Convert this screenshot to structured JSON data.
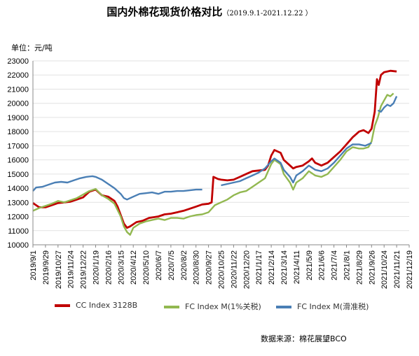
{
  "title": {
    "main": "国内外棉花现货价格对比",
    "date_range": "（2019.9.1-2021.12.22 ）"
  },
  "unit_label": "单位：元/吨",
  "source": "数据来源：棉花展望BCO",
  "chart_data": {
    "type": "line",
    "title": "国内外棉花现货价格对比",
    "ylabel": "单位：元/吨",
    "xlabel": "",
    "ylim": [
      10000,
      23000
    ],
    "y_ticks": [
      10000,
      11000,
      12000,
      13000,
      14000,
      15000,
      16000,
      17000,
      18000,
      19000,
      20000,
      21000,
      22000,
      23000
    ],
    "x_range": [
      "2019-09-01",
      "2021-12-19"
    ],
    "x_tick_labels": [
      "2019/9/1",
      "2019/9/29",
      "2019/10/27",
      "2019/11/24",
      "2019/12/22",
      "2020/1/19",
      "2020/2/16",
      "2020/3/15",
      "2020/4/12",
      "2020/5/10",
      "2020/6/7",
      "2020/7/5",
      "2020/8/2",
      "2020/8/30",
      "2020/9/27",
      "2020/10/25",
      "2020/11/22",
      "2020/12/20",
      "2021/1/17",
      "2021/2/14",
      "2021/3/14",
      "2021/4/11",
      "2021/5/9",
      "2021/6/6",
      "2021/7/4",
      "2021/8/1",
      "2021/8/29",
      "2021/9/26",
      "2021/10/24",
      "2021/11/21",
      "2021/12/19"
    ],
    "grid": "horizontal",
    "legend_position": "bottom",
    "series": [
      {
        "name": "CC Index 3128B",
        "color": "#c00000",
        "points": [
          [
            "2019-09-01",
            12950
          ],
          [
            "2019-09-08",
            12800
          ],
          [
            "2019-09-15",
            12650
          ],
          [
            "2019-09-29",
            12650
          ],
          [
            "2019-10-13",
            12800
          ],
          [
            "2019-10-27",
            12950
          ],
          [
            "2019-11-10",
            13000
          ],
          [
            "2019-11-24",
            13050
          ],
          [
            "2019-12-08",
            13200
          ],
          [
            "2019-12-22",
            13350
          ],
          [
            "2020-01-05",
            13750
          ],
          [
            "2020-01-19",
            13900
          ],
          [
            "2020-02-02",
            13500
          ],
          [
            "2020-02-16",
            13400
          ],
          [
            "2020-03-01",
            13100
          ],
          [
            "2020-03-08",
            12700
          ],
          [
            "2020-03-15",
            12100
          ],
          [
            "2020-03-22",
            11500
          ],
          [
            "2020-03-29",
            11200
          ],
          [
            "2020-04-05",
            11300
          ],
          [
            "2020-04-19",
            11600
          ],
          [
            "2020-05-03",
            11700
          ],
          [
            "2020-05-17",
            11900
          ],
          [
            "2020-06-07",
            12000
          ],
          [
            "2020-06-21",
            12150
          ],
          [
            "2020-07-05",
            12200
          ],
          [
            "2020-07-19",
            12300
          ],
          [
            "2020-08-02",
            12400
          ],
          [
            "2020-08-16",
            12550
          ],
          [
            "2020-08-30",
            12700
          ],
          [
            "2020-09-13",
            12850
          ],
          [
            "2020-09-27",
            12900
          ],
          [
            "2020-10-04",
            13000
          ],
          [
            "2020-10-08",
            14800
          ],
          [
            "2020-10-18",
            14650
          ],
          [
            "2020-10-25",
            14600
          ],
          [
            "2020-11-08",
            14550
          ],
          [
            "2020-11-22",
            14600
          ],
          [
            "2020-12-06",
            14800
          ],
          [
            "2020-12-20",
            15000
          ],
          [
            "2021-01-03",
            15200
          ],
          [
            "2021-01-17",
            15250
          ],
          [
            "2021-01-31",
            15300
          ],
          [
            "2021-02-07",
            15600
          ],
          [
            "2021-02-14",
            16300
          ],
          [
            "2021-02-21",
            16700
          ],
          [
            "2021-03-07",
            16500
          ],
          [
            "2021-03-14",
            16000
          ],
          [
            "2021-03-28",
            15600
          ],
          [
            "2021-04-04",
            15400
          ],
          [
            "2021-04-11",
            15500
          ],
          [
            "2021-04-25",
            15600
          ],
          [
            "2021-05-09",
            15900
          ],
          [
            "2021-05-16",
            16100
          ],
          [
            "2021-05-23",
            15800
          ],
          [
            "2021-06-06",
            15600
          ],
          [
            "2021-06-20",
            15800
          ],
          [
            "2021-07-04",
            16200
          ],
          [
            "2021-07-18",
            16600
          ],
          [
            "2021-08-01",
            17100
          ],
          [
            "2021-08-15",
            17600
          ],
          [
            "2021-08-29",
            18000
          ],
          [
            "2021-09-08",
            18100
          ],
          [
            "2021-09-19",
            17900
          ],
          [
            "2021-09-26",
            18200
          ],
          [
            "2021-10-03",
            19400
          ],
          [
            "2021-10-08",
            21700
          ],
          [
            "2021-10-12",
            21300
          ],
          [
            "2021-10-17",
            22000
          ],
          [
            "2021-10-24",
            22200
          ],
          [
            "2021-11-07",
            22300
          ],
          [
            "2021-11-21",
            22250
          ]
        ]
      },
      {
        "name": "FC Index M(1%关税)",
        "color": "#92b850",
        "points": [
          [
            "2019-09-01",
            12400
          ],
          [
            "2019-09-15",
            12600
          ],
          [
            "2019-09-29",
            12750
          ],
          [
            "2019-10-13",
            12900
          ],
          [
            "2019-10-27",
            13100
          ],
          [
            "2019-11-10",
            13000
          ],
          [
            "2019-11-24",
            13150
          ],
          [
            "2019-12-08",
            13300
          ],
          [
            "2019-12-22",
            13550
          ],
          [
            "2020-01-05",
            13800
          ],
          [
            "2020-01-19",
            13950
          ],
          [
            "2020-02-02",
            13500
          ],
          [
            "2020-02-16",
            13250
          ],
          [
            "2020-03-01",
            12900
          ],
          [
            "2020-03-15",
            12000
          ],
          [
            "2020-03-22",
            11300
          ],
          [
            "2020-03-29",
            10900
          ],
          [
            "2020-04-05",
            10700
          ],
          [
            "2020-04-12",
            11200
          ],
          [
            "2020-04-26",
            11500
          ],
          [
            "2020-05-10",
            11650
          ],
          [
            "2020-05-24",
            11750
          ],
          [
            "2020-06-07",
            11850
          ],
          [
            "2020-06-21",
            11750
          ],
          [
            "2020-07-05",
            11900
          ],
          [
            "2020-07-19",
            11900
          ],
          [
            "2020-08-02",
            11850
          ],
          [
            "2020-08-16",
            12000
          ],
          [
            "2020-08-30",
            12100
          ],
          [
            "2020-09-13",
            12150
          ],
          [
            "2020-09-27",
            12300
          ],
          [
            "2020-10-11",
            12800
          ],
          [
            "2020-10-25",
            13000
          ],
          [
            "2020-11-08",
            13200
          ],
          [
            "2020-11-22",
            13500
          ],
          [
            "2020-12-06",
            13700
          ],
          [
            "2020-12-20",
            13800
          ],
          [
            "2021-01-03",
            14100
          ],
          [
            "2021-01-17",
            14400
          ],
          [
            "2021-01-31",
            14700
          ],
          [
            "2021-02-14",
            15700
          ],
          [
            "2021-02-21",
            16000
          ],
          [
            "2021-03-07",
            15700
          ],
          [
            "2021-03-14",
            15000
          ],
          [
            "2021-03-28",
            14400
          ],
          [
            "2021-04-04",
            13900
          ],
          [
            "2021-04-11",
            14400
          ],
          [
            "2021-04-25",
            14700
          ],
          [
            "2021-05-09",
            15200
          ],
          [
            "2021-05-23",
            14900
          ],
          [
            "2021-06-06",
            14800
          ],
          [
            "2021-06-20",
            15000
          ],
          [
            "2021-07-04",
            15500
          ],
          [
            "2021-07-18",
            16000
          ],
          [
            "2021-08-01",
            16600
          ],
          [
            "2021-08-15",
            16900
          ],
          [
            "2021-08-29",
            16800
          ],
          [
            "2021-09-08",
            16800
          ],
          [
            "2021-09-19",
            16900
          ],
          [
            "2021-09-26",
            17300
          ],
          [
            "2021-10-03",
            18400
          ],
          [
            "2021-10-10",
            19000
          ],
          [
            "2021-10-17",
            19800
          ],
          [
            "2021-10-24",
            20200
          ],
          [
            "2021-10-31",
            20600
          ],
          [
            "2021-11-07",
            20500
          ],
          [
            "2021-11-14",
            20700
          ]
        ]
      },
      {
        "name": "FC Index M(滑准税)",
        "color": "#4a7fb5",
        "points": [
          [
            "2019-09-01",
            13800
          ],
          [
            "2019-09-08",
            14050
          ],
          [
            "2019-09-22",
            14100
          ],
          [
            "2019-10-06",
            14250
          ],
          [
            "2019-10-20",
            14400
          ],
          [
            "2019-11-03",
            14450
          ],
          [
            "2019-11-17",
            14400
          ],
          [
            "2019-12-01",
            14550
          ],
          [
            "2019-12-15",
            14700
          ],
          [
            "2019-12-29",
            14800
          ],
          [
            "2020-01-12",
            14850
          ],
          [
            "2020-01-19",
            14800
          ],
          [
            "2020-02-02",
            14600
          ],
          [
            "2020-02-16",
            14300
          ],
          [
            "2020-03-01",
            14000
          ],
          [
            "2020-03-15",
            13600
          ],
          [
            "2020-03-22",
            13300
          ],
          [
            "2020-03-29",
            13200
          ],
          [
            "2020-04-12",
            13400
          ],
          [
            "2020-04-26",
            13600
          ],
          [
            "2020-05-10",
            13650
          ],
          [
            "2020-05-24",
            13700
          ],
          [
            "2020-06-07",
            13600
          ],
          [
            "2020-06-21",
            13750
          ],
          [
            "2020-07-05",
            13750
          ],
          [
            "2020-07-19",
            13800
          ],
          [
            "2020-08-02",
            13800
          ],
          [
            "2020-08-16",
            13850
          ],
          [
            "2020-08-30",
            13900
          ],
          [
            "2020-09-13",
            13900
          ]
        ]
      },
      {
        "name": "FC Index M(滑准税)",
        "color": "#4a7fb5",
        "points": [
          [
            "2020-10-25",
            14200
          ],
          [
            "2020-11-08",
            14300
          ],
          [
            "2020-11-22",
            14400
          ],
          [
            "2020-12-06",
            14500
          ],
          [
            "2020-12-20",
            14700
          ],
          [
            "2021-01-03",
            14900
          ],
          [
            "2021-01-17",
            15100
          ],
          [
            "2021-01-31",
            15400
          ],
          [
            "2021-02-14",
            15900
          ],
          [
            "2021-02-21",
            16100
          ],
          [
            "2021-03-07",
            15800
          ],
          [
            "2021-03-14",
            15300
          ],
          [
            "2021-03-28",
            14800
          ],
          [
            "2021-04-04",
            14400
          ],
          [
            "2021-04-11",
            14900
          ],
          [
            "2021-04-25",
            15200
          ],
          [
            "2021-05-09",
            15600
          ],
          [
            "2021-05-23",
            15300
          ],
          [
            "2021-06-06",
            15200
          ],
          [
            "2021-06-20",
            15400
          ],
          [
            "2021-07-04",
            15800
          ],
          [
            "2021-07-18",
            16300
          ],
          [
            "2021-08-01",
            16800
          ],
          [
            "2021-08-15",
            17100
          ],
          [
            "2021-08-29",
            17100
          ],
          [
            "2021-09-12",
            17000
          ],
          [
            "2021-09-26",
            17200
          ]
        ]
      },
      {
        "name": "FC Index M(滑准税)",
        "color": "#4a7fb5",
        "points": [
          [
            "2021-10-10",
            19500
          ],
          [
            "2021-10-17",
            19400
          ],
          [
            "2021-10-24",
            19700
          ],
          [
            "2021-10-31",
            19900
          ],
          [
            "2021-11-07",
            19800
          ],
          [
            "2021-11-14",
            20000
          ],
          [
            "2021-11-21",
            20500
          ]
        ]
      }
    ]
  },
  "legend": [
    {
      "label": "CC Index 3128B",
      "color": "#c00000"
    },
    {
      "label": "FC Index M(1%关税)",
      "color": "#92b850"
    },
    {
      "label": "FC Index M(滑准税)",
      "color": "#4a7fb5"
    }
  ]
}
